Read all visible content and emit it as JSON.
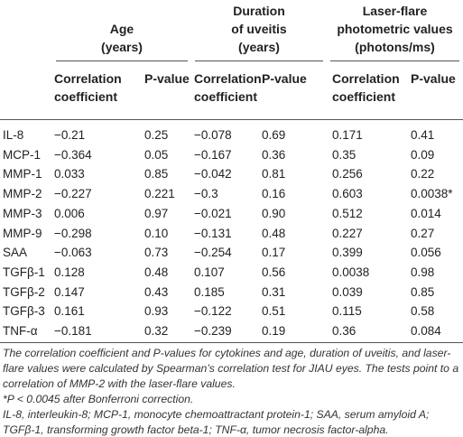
{
  "table": {
    "group_headers": [
      [
        "Age",
        "(years)"
      ],
      [
        "Duration",
        "of uveitis",
        "(years)"
      ],
      [
        "Laser-flare",
        "photometric values",
        "(photons/ms)"
      ]
    ],
    "sub_headers": [
      [
        "Correlation",
        "coefficient"
      ],
      [
        "P-value"
      ]
    ],
    "rows": [
      [
        "IL-8",
        "−0.21",
        "0.25",
        "−0.078",
        "0.69",
        "0.171",
        "0.41"
      ],
      [
        "MCP-1",
        "−0.364",
        "0.05",
        "−0.167",
        "0.36",
        "0.35",
        "0.09"
      ],
      [
        "MMP-1",
        "0.033",
        "0.85",
        "−0.042",
        "0.81",
        "0.256",
        "0.22"
      ],
      [
        "MMP-2",
        "−0.227",
        "0.221",
        "−0.3",
        "0.16",
        "0.603",
        "0.0038*"
      ],
      [
        "MMP-3",
        "0.006",
        "0.97",
        "−0.021",
        "0.90",
        "0.512",
        "0.014"
      ],
      [
        "MMP-9",
        "−0.298",
        "0.10",
        "−0.131",
        "0.48",
        "0.227",
        "0.27"
      ],
      [
        "SAA",
        "−0.063",
        "0.73",
        "−0.254",
        "0.17",
        "0.399",
        "0.056"
      ],
      [
        "TGFβ-1",
        "0.128",
        "0.48",
        "0.107",
        "0.56",
        "0.0038",
        "0.98"
      ],
      [
        "TGFβ-2",
        "0.147",
        "0.43",
        "0.185",
        "0.31",
        "0.039",
        "0.85"
      ],
      [
        "TGFβ-3",
        "0.161",
        "0.93",
        "−0.122",
        "0.51",
        "0.115",
        "0.58"
      ],
      [
        "TNF-α",
        "−0.181",
        "0.32",
        "−0.239",
        "0.19",
        "0.36",
        "0.084"
      ]
    ]
  },
  "notes": [
    "The correlation coefficient and P-values for cytokines and age, duration of uveitis, and laser-flare values were calculated by Spearman’s correlation test for JIAU eyes. The tests point to a correlation of MMP-2 with the laser-flare values.",
    "*P < 0.0045 after Bonferroni correction.",
    "IL-8, interleukin-8; MCP-1, monocyte chemoattractant protein-1; SAA, serum amyloid A; TGFβ-1, transforming growth factor beta-1; TNF-α, tumor necrosis factor-alpha."
  ]
}
